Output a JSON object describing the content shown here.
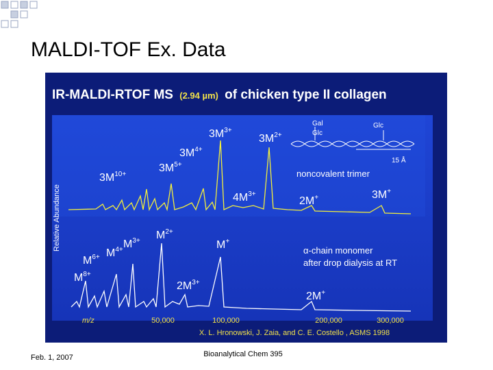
{
  "header": {
    "title": "MALDI-TOF Ex. Data"
  },
  "figure": {
    "title": "IR-MALDI-RTOF MS",
    "wavelength": "(2.94 µm)",
    "title_rest": "of chicken type II collagen",
    "y_axis_label": "Relative Abundance",
    "x_axis_label": "m/z",
    "x_ticks": [
      "50,000",
      "100,000",
      "200,000",
      "300,000"
    ],
    "top_panel": {
      "annotation": "noncovalent trimer",
      "inset_labels": [
        "Gal",
        "Glc",
        "Glc",
        "15 Å"
      ],
      "peak_labels": [
        {
          "base": "3M",
          "charge": "10+"
        },
        {
          "base": "3M",
          "charge": "5+"
        },
        {
          "base": "3M",
          "charge": "4+"
        },
        {
          "base": "3M",
          "charge": "3+"
        },
        {
          "base": "3M",
          "charge": "2+"
        },
        {
          "base": "4M",
          "charge": "3+"
        },
        {
          "base": "2M",
          "charge": "+"
        },
        {
          "base": "3M",
          "charge": "+"
        }
      ]
    },
    "bottom_panel": {
      "annotation": [
        "α-chain monomer",
        "after drop dialysis at RT"
      ],
      "peak_labels": [
        {
          "base": "M",
          "charge": "6+"
        },
        {
          "base": "M",
          "charge": "8+"
        },
        {
          "base": "M",
          "charge": "4+"
        },
        {
          "base": "M",
          "charge": "3+"
        },
        {
          "base": "M",
          "charge": "2+"
        },
        {
          "base": "M",
          "charge": "+"
        },
        {
          "base": "2M",
          "charge": "3+"
        },
        {
          "base": "2M",
          "charge": "+"
        }
      ]
    },
    "citation": "X. L. Hronowski, J. Zaia, and C. E. Costello , ASMS 1998"
  },
  "footer": {
    "date": "Feb. 1, 2007",
    "course": "Bioanalytical Chem 395"
  }
}
